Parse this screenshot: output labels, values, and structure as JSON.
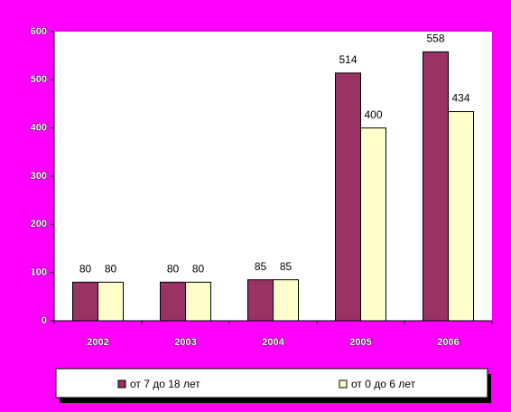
{
  "chart_data": {
    "type": "bar",
    "categories": [
      "2002",
      "2003",
      "2004",
      "2005",
      "2006"
    ],
    "series": [
      {
        "name": "от 7 до 18 лет",
        "color": "#993366",
        "values": [
          80,
          80,
          85,
          514,
          558
        ]
      },
      {
        "name": "от 0 до 6 лет",
        "color": "#ffffcc",
        "values": [
          80,
          80,
          85,
          400,
          434
        ]
      }
    ],
    "ylim": [
      0,
      600
    ],
    "yticks": [
      0,
      100,
      200,
      300,
      400,
      500,
      600
    ],
    "legend": "bottom"
  }
}
